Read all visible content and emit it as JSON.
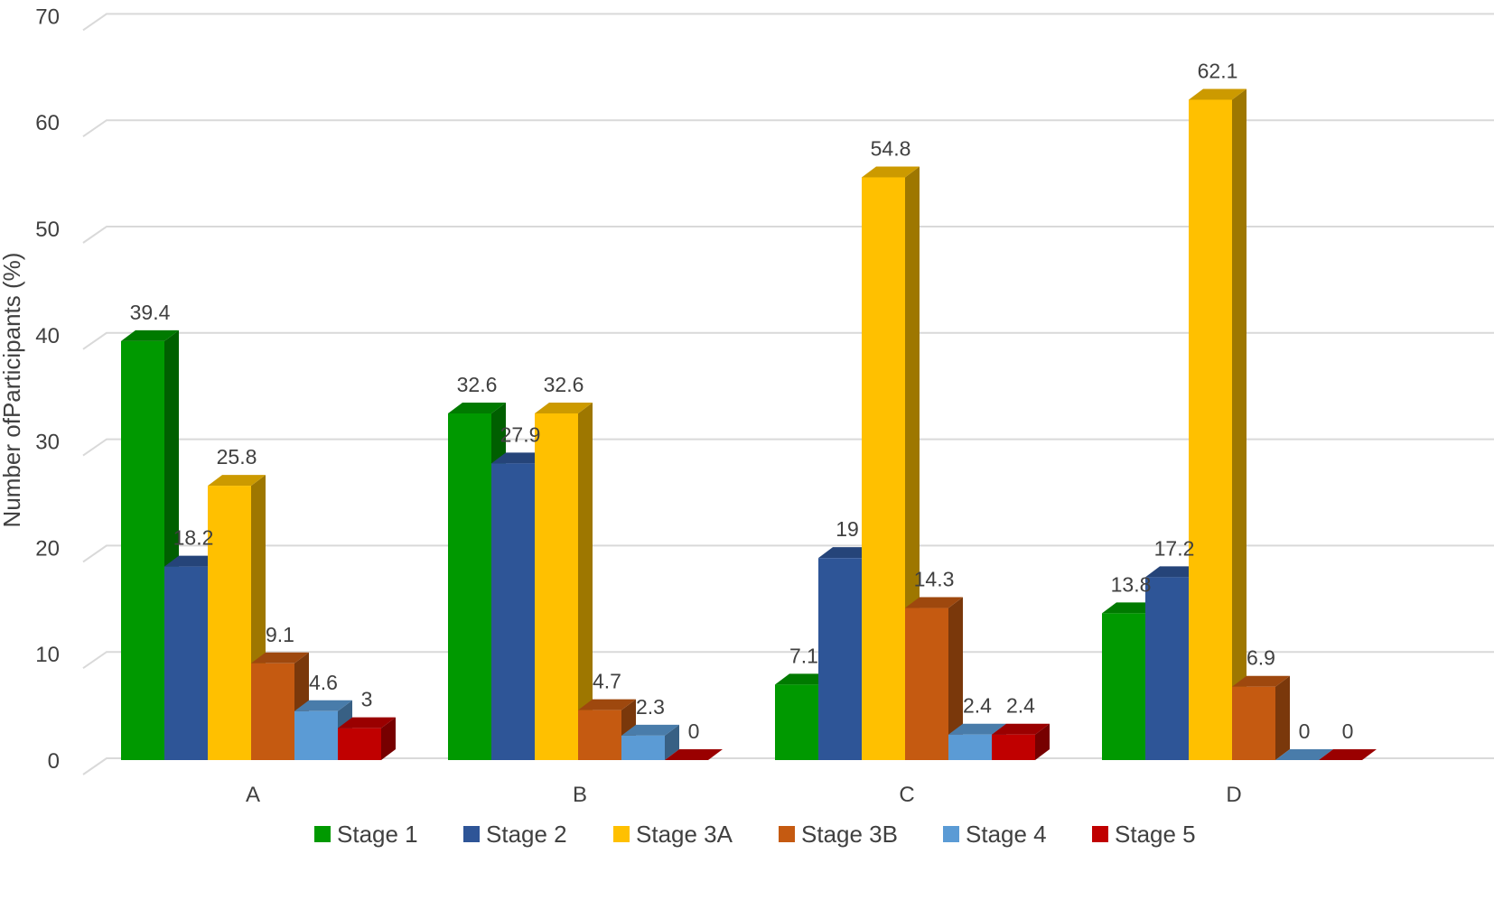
{
  "chart_data": {
    "type": "bar",
    "style": "3d-clustered",
    "categories": [
      "A",
      "B",
      "C",
      "D"
    ],
    "ylabel": "Number ofParticipants (%)",
    "xlabel": "",
    "title": "",
    "ylim": [
      0,
      70
    ],
    "yticks": [
      0,
      10,
      20,
      30,
      40,
      50,
      60,
      70
    ],
    "grid": true,
    "legend_position": "bottom",
    "series": [
      {
        "name": "Stage 1",
        "color": "#009900",
        "values": [
          39.4,
          32.6,
          7.1,
          13.8
        ],
        "labels": [
          "39.4",
          "32.6",
          "7.1",
          "13.8"
        ]
      },
      {
        "name": "Stage 2",
        "color": "#2e5597",
        "values": [
          18.2,
          27.9,
          19,
          17.2
        ],
        "labels": [
          "18.2",
          "27.9",
          "19",
          "17.2"
        ]
      },
      {
        "name": "Stage 3A",
        "color": "#ffc000",
        "values": [
          25.8,
          32.6,
          54.8,
          62.1
        ],
        "labels": [
          "25.8",
          "32.6",
          "54.8",
          "62.1"
        ]
      },
      {
        "name": "Stage 3B",
        "color": "#c55a11",
        "values": [
          9.1,
          4.7,
          14.3,
          6.9
        ],
        "labels": [
          "9.1",
          "4.7",
          "14.3",
          "6.9"
        ]
      },
      {
        "name": "Stage 4",
        "color": "#5b9bd5",
        "values": [
          4.6,
          2.3,
          2.4,
          0
        ],
        "labels": [
          "4.6",
          "2.3",
          "2.4",
          "0"
        ]
      },
      {
        "name": "Stage 5",
        "color": "#c00000",
        "values": [
          3,
          0,
          2.4,
          0
        ],
        "labels": [
          "3",
          "0",
          "2.4",
          "0"
        ]
      }
    ]
  }
}
